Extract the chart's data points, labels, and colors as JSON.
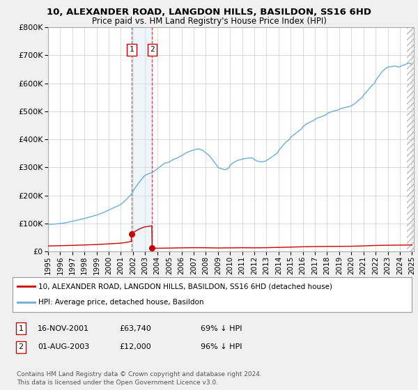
{
  "title": "10, ALEXANDER ROAD, LANGDON HILLS, BASILDON, SS16 6HD",
  "subtitle": "Price paid vs. HM Land Registry's House Price Index (HPI)",
  "legend_line1": "10, ALEXANDER ROAD, LANGDON HILLS, BASILDON, SS16 6HD (detached house)",
  "legend_line2": "HPI: Average price, detached house, Basildon",
  "table_rows": [
    {
      "num": "1",
      "date": "16-NOV-2001",
      "price": "£63,740",
      "hpi": "69% ↓ HPI"
    },
    {
      "num": "2",
      "date": "01-AUG-2003",
      "price": "£12,000",
      "hpi": "96% ↓ HPI"
    }
  ],
  "footnote1": "Contains HM Land Registry data © Crown copyright and database right 2024.",
  "footnote2": "This data is licensed under the Open Government Licence v3.0.",
  "sale1_date_num": 2001.88,
  "sale1_price": 63740,
  "sale2_date_num": 2003.58,
  "sale2_price": 12000,
  "hpi_color": "#6baed6",
  "price_color": "#cc0000",
  "background_color": "#f0f0f0",
  "plot_bg_color": "#ffffff",
  "grid_color": "#cccccc",
  "hatch_color": "#bbbbbb",
  "shade_color": "#d0e4f5",
  "ylim_max": 800000,
  "hpi_keypoints": [
    [
      1995.0,
      97000
    ],
    [
      1995.5,
      98000
    ],
    [
      1996.0,
      100000
    ],
    [
      1996.5,
      103000
    ],
    [
      1997.0,
      108000
    ],
    [
      1997.5,
      113000
    ],
    [
      1998.0,
      118000
    ],
    [
      1998.5,
      124000
    ],
    [
      1999.0,
      130000
    ],
    [
      1999.5,
      138000
    ],
    [
      2000.0,
      148000
    ],
    [
      2000.5,
      158000
    ],
    [
      2001.0,
      168000
    ],
    [
      2001.5,
      188000
    ],
    [
      2001.88,
      205000
    ],
    [
      2002.0,
      215000
    ],
    [
      2002.3,
      235000
    ],
    [
      2002.6,
      252000
    ],
    [
      2002.9,
      268000
    ],
    [
      2003.0,
      272000
    ],
    [
      2003.3,
      278000
    ],
    [
      2003.58,
      282000
    ],
    [
      2003.8,
      288000
    ],
    [
      2004.0,
      295000
    ],
    [
      2004.3,
      305000
    ],
    [
      2004.6,
      315000
    ],
    [
      2004.9,
      318000
    ],
    [
      2005.0,
      320000
    ],
    [
      2005.3,
      328000
    ],
    [
      2005.6,
      333000
    ],
    [
      2006.0,
      342000
    ],
    [
      2006.5,
      355000
    ],
    [
      2007.0,
      362000
    ],
    [
      2007.3,
      366000
    ],
    [
      2007.5,
      365000
    ],
    [
      2007.8,
      360000
    ],
    [
      2008.0,
      352000
    ],
    [
      2008.3,
      342000
    ],
    [
      2008.6,
      325000
    ],
    [
      2008.9,
      308000
    ],
    [
      2009.0,
      300000
    ],
    [
      2009.3,
      295000
    ],
    [
      2009.6,
      292000
    ],
    [
      2009.9,
      298000
    ],
    [
      2010.0,
      308000
    ],
    [
      2010.3,
      318000
    ],
    [
      2010.6,
      325000
    ],
    [
      2010.9,
      328000
    ],
    [
      2011.0,
      330000
    ],
    [
      2011.3,
      332000
    ],
    [
      2011.6,
      334000
    ],
    [
      2011.9,
      333000
    ],
    [
      2012.0,
      328000
    ],
    [
      2012.3,
      322000
    ],
    [
      2012.6,
      320000
    ],
    [
      2012.9,
      322000
    ],
    [
      2013.0,
      325000
    ],
    [
      2013.3,
      333000
    ],
    [
      2013.6,
      342000
    ],
    [
      2013.9,
      352000
    ],
    [
      2014.0,
      360000
    ],
    [
      2014.3,
      375000
    ],
    [
      2014.6,
      390000
    ],
    [
      2014.9,
      400000
    ],
    [
      2015.0,
      408000
    ],
    [
      2015.3,
      418000
    ],
    [
      2015.6,
      428000
    ],
    [
      2015.9,
      438000
    ],
    [
      2016.0,
      445000
    ],
    [
      2016.3,
      455000
    ],
    [
      2016.6,
      462000
    ],
    [
      2016.9,
      468000
    ],
    [
      2017.0,
      472000
    ],
    [
      2017.3,
      478000
    ],
    [
      2017.6,
      482000
    ],
    [
      2017.9,
      488000
    ],
    [
      2018.0,
      492000
    ],
    [
      2018.3,
      498000
    ],
    [
      2018.6,
      502000
    ],
    [
      2018.9,
      505000
    ],
    [
      2019.0,
      508000
    ],
    [
      2019.3,
      512000
    ],
    [
      2019.6,
      515000
    ],
    [
      2019.9,
      518000
    ],
    [
      2020.0,
      520000
    ],
    [
      2020.3,
      528000
    ],
    [
      2020.6,
      540000
    ],
    [
      2020.9,
      550000
    ],
    [
      2021.0,
      558000
    ],
    [
      2021.3,
      572000
    ],
    [
      2021.6,
      588000
    ],
    [
      2021.9,
      600000
    ],
    [
      2022.0,
      610000
    ],
    [
      2022.3,
      628000
    ],
    [
      2022.6,
      645000
    ],
    [
      2022.9,
      655000
    ],
    [
      2023.0,
      658000
    ],
    [
      2023.3,
      660000
    ],
    [
      2023.6,
      662000
    ],
    [
      2023.9,
      658000
    ],
    [
      2024.0,
      660000
    ],
    [
      2024.3,
      665000
    ],
    [
      2024.6,
      670000
    ],
    [
      2024.8,
      672000
    ],
    [
      2025.0,
      668000
    ]
  ],
  "red_keypoints": [
    [
      1995.0,
      20000
    ],
    [
      1996.0,
      21000
    ],
    [
      1997.0,
      22000
    ],
    [
      1998.0,
      23500
    ],
    [
      1999.0,
      25000
    ],
    [
      2000.0,
      27500
    ],
    [
      2001.0,
      30000
    ],
    [
      2001.5,
      33000
    ],
    [
      2001.85,
      36000
    ],
    [
      2001.88,
      63740
    ],
    [
      2002.0,
      68000
    ],
    [
      2002.3,
      75000
    ],
    [
      2002.6,
      82000
    ],
    [
      2002.9,
      87000
    ],
    [
      2003.0,
      88000
    ],
    [
      2003.3,
      90000
    ],
    [
      2003.55,
      92000
    ],
    [
      2003.58,
      12000
    ],
    [
      2003.8,
      11500
    ],
    [
      2004.0,
      11800
    ],
    [
      2005.0,
      12500
    ],
    [
      2006.0,
      13200
    ],
    [
      2007.0,
      13800
    ],
    [
      2008.0,
      13500
    ],
    [
      2009.0,
      12800
    ],
    [
      2010.0,
      13200
    ],
    [
      2011.0,
      13600
    ],
    [
      2012.0,
      13300
    ],
    [
      2013.0,
      13800
    ],
    [
      2014.0,
      14800
    ],
    [
      2015.0,
      15800
    ],
    [
      2016.0,
      17000
    ],
    [
      2017.0,
      17800
    ],
    [
      2018.0,
      18300
    ],
    [
      2019.0,
      18600
    ],
    [
      2020.0,
      19000
    ],
    [
      2021.0,
      20200
    ],
    [
      2022.0,
      21800
    ],
    [
      2023.0,
      22500
    ],
    [
      2024.0,
      23000
    ],
    [
      2025.0,
      23500
    ]
  ]
}
